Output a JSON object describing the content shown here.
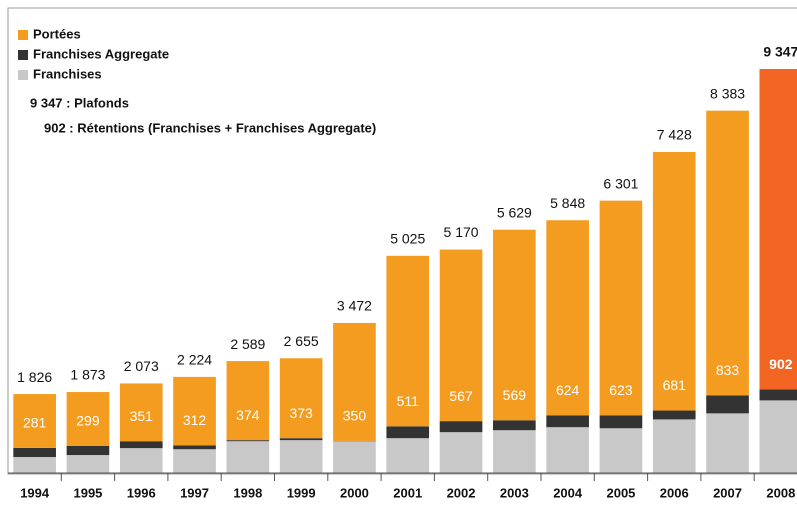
{
  "chart_data": {
    "type": "stacked-bar",
    "categories": [
      "1994",
      "1995",
      "1996",
      "1997",
      "1998",
      "1999",
      "2000",
      "2001",
      "2002",
      "2003",
      "2004",
      "2005",
      "2006",
      "2007",
      "2008"
    ],
    "series": [
      {
        "name": "Franchises",
        "color": "#c8c8c8",
        "values": [
          370,
          415,
          575,
          550,
          735,
          760,
          735,
          805,
          945,
          990,
          1060,
          1035,
          1240,
          1380,
          1680
        ]
      },
      {
        "name": "Franchises Aggregate",
        "color": "#333333",
        "values": [
          210,
          210,
          160,
          90,
          25,
          45,
          10,
          275,
          255,
          230,
          275,
          300,
          205,
          415,
          255
        ]
      },
      {
        "name": "Portées",
        "color": "#f39c1f",
        "values": [
          1246,
          1248,
          1338,
          1584,
          1829,
          1850,
          2727,
          3945,
          3970,
          4409,
          4513,
          4966,
          5983,
          6588,
          7412
        ],
        "colors": [
          "#f39c1f",
          "#f39c1f",
          "#f39c1f",
          "#f39c1f",
          "#f39c1f",
          "#f39c1f",
          "#f39c1f",
          "#f39c1f",
          "#f39c1f",
          "#f39c1f",
          "#f39c1f",
          "#f39c1f",
          "#f39c1f",
          "#f39c1f",
          "#f26522"
        ]
      }
    ],
    "totals": {
      "values": [
        1826,
        1873,
        2073,
        2224,
        2589,
        2655,
        3472,
        5025,
        5170,
        5629,
        5848,
        6301,
        7428,
        8383,
        9347
      ],
      "value_labels": [
        "1 826",
        "1 873",
        "2 073",
        "2 224",
        "2 589",
        "2 655",
        "3 472",
        "5 025",
        "5 170",
        "5 629",
        "5 848",
        "6 301",
        "7 428",
        "8 383",
        "9 347"
      ]
    },
    "retentions": {
      "values": [
        281,
        299,
        351,
        312,
        374,
        373,
        350,
        511,
        567,
        569,
        624,
        623,
        681,
        833,
        902
      ]
    },
    "annotations": [
      "9 347 : Plafonds",
      "902 : Rétentions (Franchises + Franchises Aggregate)"
    ],
    "ylim": [
      0,
      9347
    ]
  }
}
